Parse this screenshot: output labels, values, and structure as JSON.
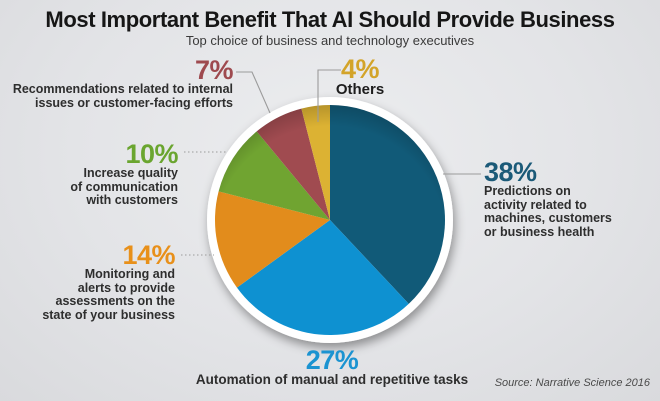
{
  "header": {
    "title": "Most Important Benefit That AI Should Provide Business",
    "subtitle": "Top choice of business and technology executives"
  },
  "footer": {
    "source": "Source: Narrative Science 2016"
  },
  "chart_data": {
    "type": "pie",
    "title": "Most Important Benefit That AI Should Provide Business",
    "subtitle": "Top choice of business and technology executives",
    "source": "Source: Narrative Science 2016",
    "start_angle_deg": 0,
    "direction": "clockwise",
    "legend_position": "none",
    "label_style": "callout labels around pie with leader lines",
    "slices": [
      {
        "value": 38,
        "pct_label": "38%",
        "color": "#115a78",
        "label_color": "#1b5a78",
        "label": "Predictions on activity related to machines, customers or business health",
        "desc_lines": [
          "Predictions on",
          "activity related to",
          "machines, customers",
          "or business health"
        ]
      },
      {
        "value": 27,
        "pct_label": "27%",
        "color": "#0e91d1",
        "label_color": "#1b93d1",
        "label": "Automation of manual and repetitive tasks",
        "desc_lines": [
          "Automation of manual and repetitive tasks"
        ]
      },
      {
        "value": 14,
        "pct_label": "14%",
        "color": "#e28c1c",
        "label_color": "#e8901a",
        "label": "Monitoring and alerts to provide assessments on the state of your business",
        "desc_lines": [
          "Monitoring and",
          "alerts to provide",
          "assessments on the",
          "state of your business"
        ]
      },
      {
        "value": 10,
        "pct_label": "10%",
        "color": "#70a431",
        "label_color": "#6aa52f",
        "label": "Increase quality of communication with customers",
        "desc_lines": [
          "Increase quality",
          "of communication",
          "with customers"
        ]
      },
      {
        "value": 7,
        "pct_label": "7%",
        "color": "#a04b50",
        "label_color": "#9e4a4f",
        "label": "Recommendations related to internal issues or customer-facing efforts",
        "desc_lines": [
          "Recommendations related to internal",
          "issues or customer-facing efforts"
        ]
      },
      {
        "value": 4,
        "pct_label": "4%",
        "color": "#dcb233",
        "label_color": "#d3a429",
        "label": "Others",
        "desc_lines": [
          "Others"
        ]
      }
    ]
  }
}
